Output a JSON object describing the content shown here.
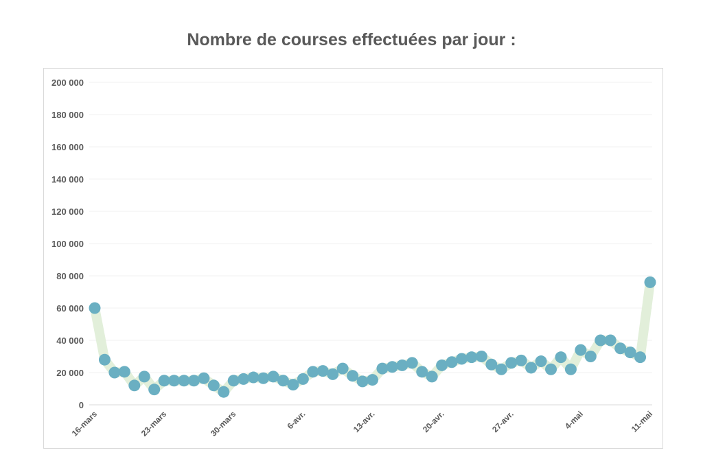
{
  "chart_data": {
    "type": "line",
    "title": "Nombre de courses effectuées par jour :",
    "xlabel": "",
    "ylabel": "",
    "ylim": [
      0,
      200000
    ],
    "y_ticks": [
      "0",
      "20 000",
      "40 000",
      "60 000",
      "80 000",
      "100 000",
      "120 000",
      "140 000",
      "160 000",
      "180 000",
      "200 000"
    ],
    "x_tick_labels": [
      "16-mars",
      "23-mars",
      "30-mars",
      "6-avr.",
      "13-avr.",
      "20-avr.",
      "27-avr.",
      "4-mai",
      "11-mai"
    ],
    "x_start": "16-mars",
    "x_end": "11-mai",
    "grid": true,
    "legend": "none",
    "colors": {
      "marker": "#6aafc2",
      "band": "#e2efda",
      "grid": "#f0f0f0",
      "text": "#595959"
    },
    "values": [
      60000,
      28000,
      20000,
      20500,
      12000,
      17500,
      9500,
      15000,
      15000,
      15000,
      15000,
      16500,
      12000,
      8000,
      15000,
      16000,
      17000,
      16500,
      17500,
      15000,
      12500,
      16000,
      20500,
      21000,
      19000,
      22500,
      18000,
      14500,
      15500,
      22500,
      23500,
      24500,
      26000,
      20500,
      17500,
      24500,
      26500,
      28500,
      29500,
      30000,
      25000,
      22000,
      26000,
      27500,
      23000,
      27000,
      22000,
      29500,
      22000,
      34000,
      30000,
      40000,
      40000,
      35000,
      32500,
      29500,
      76000
    ]
  }
}
